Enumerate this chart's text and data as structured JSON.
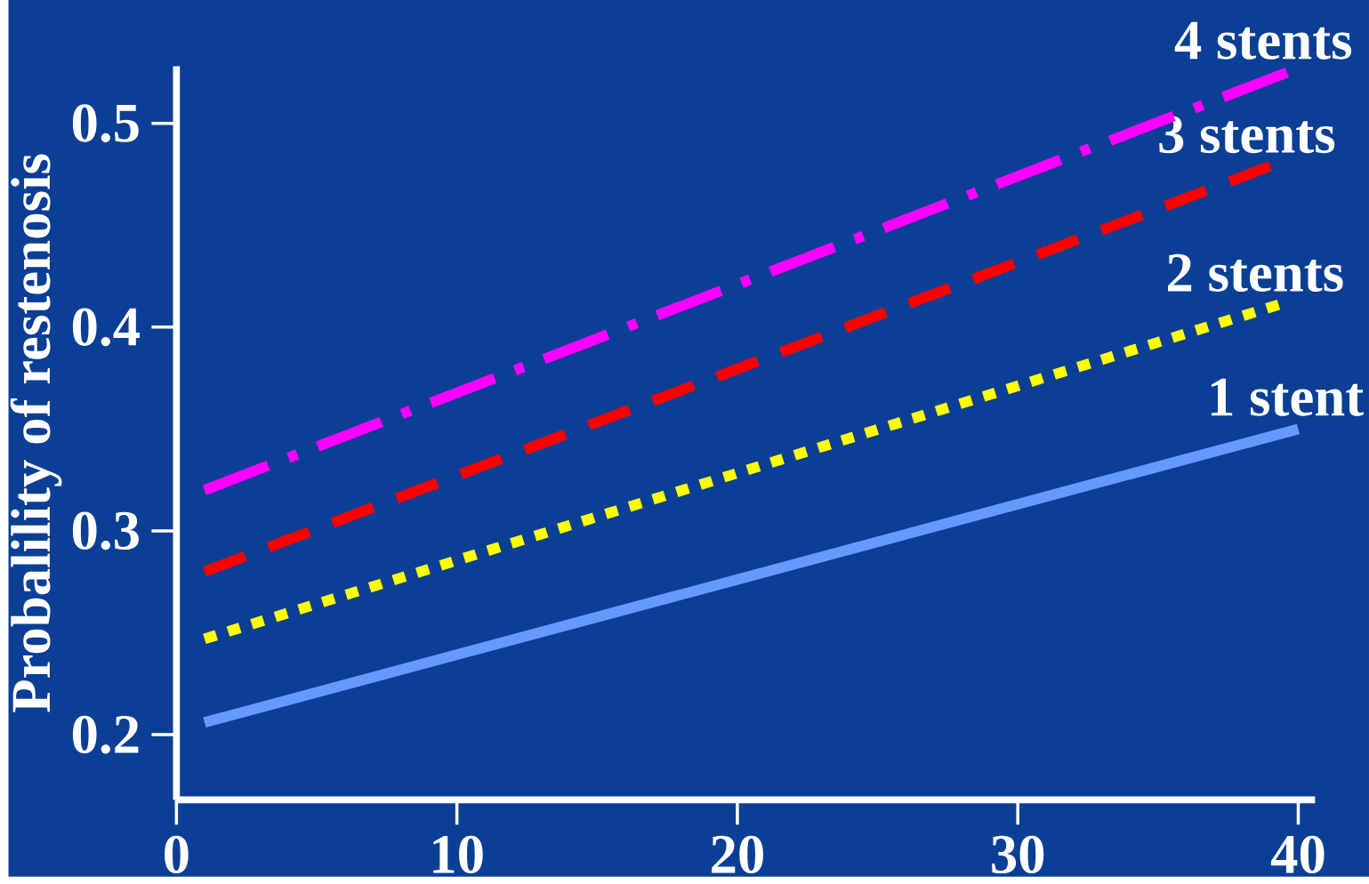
{
  "chart_data": {
    "type": "line",
    "ylabel": "Probalility of restenosis",
    "xlim": [
      0,
      40.6
    ],
    "ylim": [
      0.168,
      0.528
    ],
    "xticks": [
      0,
      10,
      20,
      30,
      40
    ],
    "yticks": [
      0.2,
      0.3,
      0.4,
      0.5
    ],
    "grid": false,
    "series": [
      {
        "name": "1 stent",
        "color": "#6699ff",
        "line_style": "solid",
        "x": [
          1,
          40
        ],
        "values": [
          0.206,
          0.35
        ]
      },
      {
        "name": "2 stents",
        "color": "#ffff00",
        "line_style": "dotted",
        "x": [
          1,
          39.3
        ],
        "values": [
          0.247,
          0.411
        ]
      },
      {
        "name": "3 stents",
        "color": "#ff0000",
        "line_style": "dashed",
        "x": [
          1,
          39
        ],
        "values": [
          0.28,
          0.479
        ]
      },
      {
        "name": "4 stents",
        "color": "#ff00ff",
        "line_style": "dashdot",
        "x": [
          1,
          39.6
        ],
        "values": [
          0.32,
          0.525
        ]
      }
    ]
  }
}
